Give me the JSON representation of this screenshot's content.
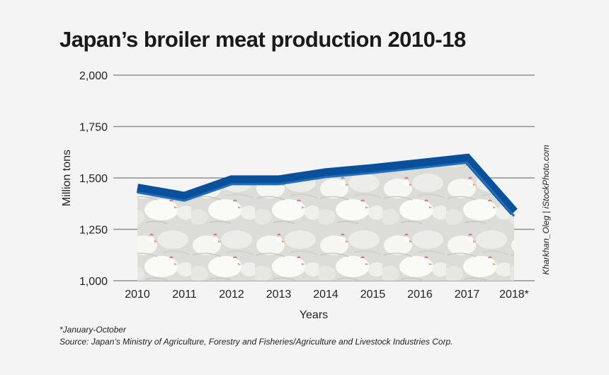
{
  "chart_data": {
    "type": "area",
    "title": "Japan’s broiler meat production 2010-18",
    "xlabel": "Years",
    "ylabel": "Million tons",
    "categories": [
      "2010",
      "2011",
      "2012",
      "2013",
      "2014",
      "2015",
      "2016",
      "2017",
      "2018*"
    ],
    "series": [
      {
        "values": [
          1450,
          1410,
          1490,
          1490,
          1525,
          1545,
          1570,
          1595,
          1335
        ]
      }
    ],
    "ylim": [
      1000,
      2000
    ],
    "yticks": [
      "1,000",
      "1,250",
      "1,500",
      "1,750",
      "2,000"
    ],
    "ytick_values": [
      1000,
      1250,
      1500,
      1750,
      2000
    ],
    "grid": true,
    "line_color": "#0a4f99",
    "fill": "photo of white broiler chickens"
  },
  "notes": {
    "footnote": "*January-October",
    "source": "Source: Japan’s Ministry of Agriculture, Forestry and Fisheries/Agriculture and Livestock Industries Corp."
  },
  "credit": "Kharkhan_Oleg | iStockPhoto.com"
}
